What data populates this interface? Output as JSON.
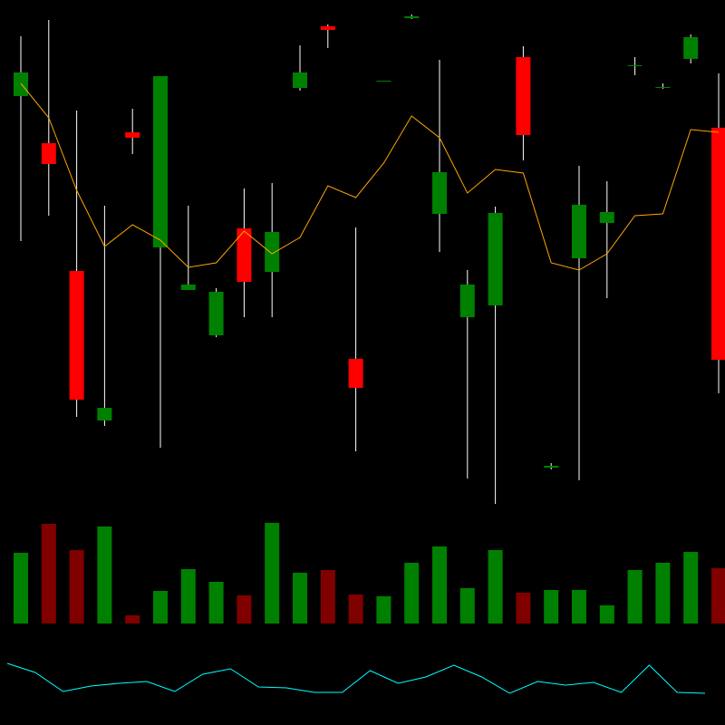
{
  "chart_data": [
    {
      "type": "candlestick",
      "open": [
        454,
        402,
        261,
        96,
        414,
        287,
        240,
        190,
        308,
        260,
        463,
        531,
        164,
        470,
        540,
        324,
        210,
        223,
        497,
        44,
        275,
        314,
        487,
        463,
        495,
        419
      ],
      "high": [
        520,
        538,
        438,
        333,
        440,
        476,
        333,
        242,
        352,
        358,
        510,
        533,
        309,
        471,
        544,
        494,
        262,
        332,
        509,
        49,
        377,
        360,
        497,
        468,
        522,
        479
      ],
      "low": [
        294,
        322,
        100,
        90,
        390,
        66,
        240,
        188,
        210,
        210,
        460,
        507,
        62,
        470,
        539,
        282,
        32,
        4,
        383,
        42,
        30,
        231,
        477,
        462,
        490,
        126
      ],
      "close": [
        480,
        379,
        119,
        110,
        408,
        476,
        246,
        238,
        249,
        304,
        480,
        527,
        132,
        471,
        542,
        370,
        246,
        325,
        411,
        46,
        334,
        326,
        488,
        464,
        519,
        163
      ],
      "up_color": "#008000",
      "down_color": "#ff0000",
      "wick_color": "#ffffff",
      "series": [
        {
          "color": "#ffa500",
          "values": [
            468,
            430,
            350,
            288,
            312,
            295,
            265,
            270,
            305,
            280,
            298,
            355,
            342,
            380,
            432,
            408,
            347,
            373,
            369,
            270,
            262,
            280,
            322,
            324,
            417,
            414
          ]
        }
      ],
      "ylim": [
        0,
        560
      ]
    },
    {
      "type": "bar",
      "values": [
        78,
        110,
        81,
        107,
        9,
        36,
        60,
        46,
        31,
        111,
        56,
        59,
        32,
        30,
        67,
        85,
        39,
        81,
        34,
        37,
        37,
        20,
        59,
        67,
        79,
        61
      ],
      "colors": [
        "#008000",
        "#800000",
        "#800000",
        "#008000",
        "#800000",
        "#008000",
        "#008000",
        "#008000",
        "#800000",
        "#008000",
        "#008000",
        "#800000",
        "#800000",
        "#008000",
        "#008000",
        "#008000",
        "#008000",
        "#008000",
        "#800000",
        "#008000",
        "#008000",
        "#008000",
        "#008000",
        "#008000",
        "#008000",
        "#800000"
      ],
      "ylim": [
        0,
        120
      ]
    },
    {
      "type": "line",
      "color": "#00ffff",
      "values": [
        68,
        58,
        37,
        43,
        46,
        48,
        37,
        56,
        62,
        42,
        41,
        36,
        36,
        60,
        46,
        53,
        66,
        53,
        35,
        48,
        44,
        47,
        36,
        66,
        36,
        35
      ],
      "ylim": [
        0,
        100
      ]
    }
  ]
}
